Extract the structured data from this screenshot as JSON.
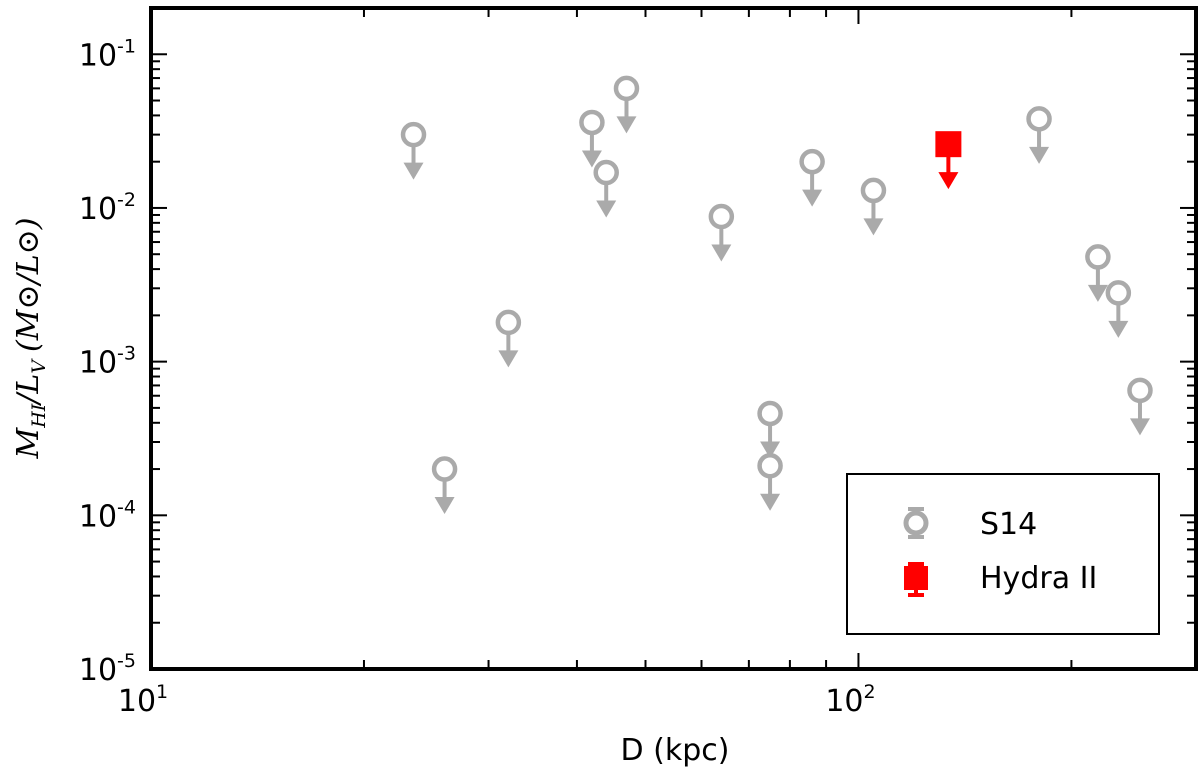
{
  "chart_data": {
    "type": "scatter",
    "x_scale": "log",
    "y_scale": "log",
    "xlim": [
      10,
      300
    ],
    "ylim": [
      1e-05,
      0.2
    ],
    "xlabel": "D (kpc)",
    "ylabel": {
      "main_1": "M",
      "sub_1": "HI",
      "sep": "/",
      "main_2": "L",
      "sub_2": "V",
      "units": "(M⊙/L⊙)"
    },
    "x_ticks": [
      {
        "value": 10,
        "base": "10",
        "exp": "1"
      },
      {
        "value": 100,
        "base": "10",
        "exp": "2"
      }
    ],
    "y_ticks": [
      {
        "value": 1e-05,
        "base": "10",
        "exp": "-5"
      },
      {
        "value": 0.0001,
        "base": "10",
        "exp": "-4"
      },
      {
        "value": 0.001,
        "base": "10",
        "exp": "-3"
      },
      {
        "value": 0.01,
        "base": "10",
        "exp": "-2"
      },
      {
        "value": 0.1,
        "base": "10",
        "exp": "-1"
      }
    ],
    "grid": false,
    "legend_position": "bottom-right",
    "upper_limits": true,
    "series": [
      {
        "name": "S14",
        "marker": "open-circle",
        "color": "#aaaaaa",
        "points": [
          {
            "x": 23.5,
            "y": 0.03
          },
          {
            "x": 26,
            "y": 0.0002
          },
          {
            "x": 32,
            "y": 0.0018
          },
          {
            "x": 42,
            "y": 0.036
          },
          {
            "x": 44,
            "y": 0.017
          },
          {
            "x": 47,
            "y": 0.06
          },
          {
            "x": 64,
            "y": 0.0088
          },
          {
            "x": 75,
            "y": 0.00046
          },
          {
            "x": 75,
            "y": 0.00021
          },
          {
            "x": 86,
            "y": 0.02
          },
          {
            "x": 105,
            "y": 0.013
          },
          {
            "x": 180,
            "y": 0.038
          },
          {
            "x": 218,
            "y": 0.0048
          },
          {
            "x": 233,
            "y": 0.0028
          },
          {
            "x": 250,
            "y": 0.00065
          }
        ]
      },
      {
        "name": "Hydra II",
        "marker": "filled-square",
        "color": "#ff0000",
        "points": [
          {
            "x": 134,
            "y": 0.026
          }
        ]
      }
    ]
  }
}
